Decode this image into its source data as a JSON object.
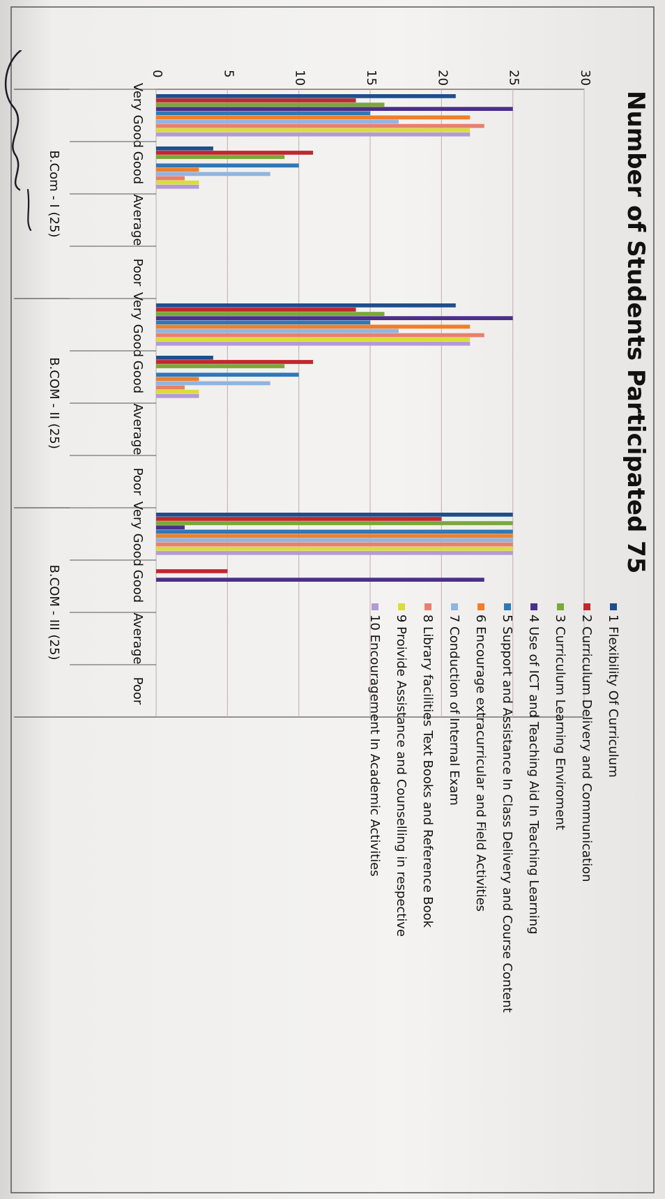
{
  "chart_data": {
    "type": "bar",
    "orientation": "horizontal",
    "title": "Number of Students Participated 75",
    "xlim": [
      0,
      30
    ],
    "xticks": [
      0,
      5,
      10,
      15,
      20,
      25,
      30
    ],
    "grid": true,
    "legend_position": "right",
    "groups": [
      {
        "label": "B.Com - I (25)",
        "categories": [
          "Very Good",
          "Good",
          "Average",
          "Poor"
        ]
      },
      {
        "label": "B.COM - II (25)",
        "categories": [
          "Very Good",
          "Good",
          "Average",
          "Poor"
        ]
      },
      {
        "label": "B.COM - III (25)",
        "categories": [
          "Very Good",
          "Good",
          "Average",
          "Poor"
        ]
      }
    ],
    "series": [
      {
        "name": "1 Flexibility Of Curriculum",
        "color": "#1f4e8c",
        "values": [
          21,
          4,
          0,
          0,
          21,
          4,
          0,
          0,
          25,
          0,
          0,
          0
        ]
      },
      {
        "name": "2 Curriculum Delivery and Communication",
        "color": "#c0282d",
        "values": [
          14,
          11,
          0,
          0,
          14,
          11,
          0,
          0,
          20,
          5,
          0,
          0
        ]
      },
      {
        "name": "3 Curriculum Learning Enviroment",
        "color": "#7aa83a",
        "values": [
          16,
          9,
          0,
          0,
          16,
          9,
          0,
          0,
          25,
          0,
          0,
          0
        ]
      },
      {
        "name": "4 Use of ICT and Teaching Aid In Teaching Learning",
        "color": "#4b2f8a",
        "values": [
          25,
          0,
          0,
          0,
          25,
          0,
          0,
          0,
          2,
          23,
          0,
          0
        ]
      },
      {
        "name": "5 Support and Assistance In Class Delivery and Course Content",
        "color": "#2f78b6",
        "values": [
          15,
          10,
          0,
          0,
          15,
          10,
          0,
          0,
          25,
          0,
          0,
          0
        ]
      },
      {
        "name": "6 Encourage extracurricular and Field Activities",
        "color": "#f07f2a",
        "values": [
          22,
          3,
          0,
          0,
          22,
          3,
          0,
          0,
          25,
          0,
          0,
          0
        ]
      },
      {
        "name": "7 Conduction of Internal Exam",
        "color": "#8fb5e0",
        "values": [
          17,
          8,
          0,
          0,
          17,
          8,
          0,
          0,
          25,
          0,
          0,
          0
        ]
      },
      {
        "name": "8 Library facilities Text Books and Reference Book",
        "color": "#e8806c",
        "values": [
          23,
          2,
          0,
          0,
          23,
          2,
          0,
          0,
          25,
          0,
          0,
          0
        ]
      },
      {
        "name": "9 Proivide Assistance and Counselling in respective",
        "color": "#d9dd3a",
        "values": [
          22,
          3,
          0,
          0,
          22,
          3,
          0,
          0,
          25,
          0,
          0,
          0
        ]
      },
      {
        "name": "10 Encouragement In Academic Activities",
        "color": "#b39ad6",
        "values": [
          22,
          3,
          0,
          0,
          22,
          3,
          0,
          0,
          25,
          0,
          0,
          0
        ]
      }
    ]
  }
}
